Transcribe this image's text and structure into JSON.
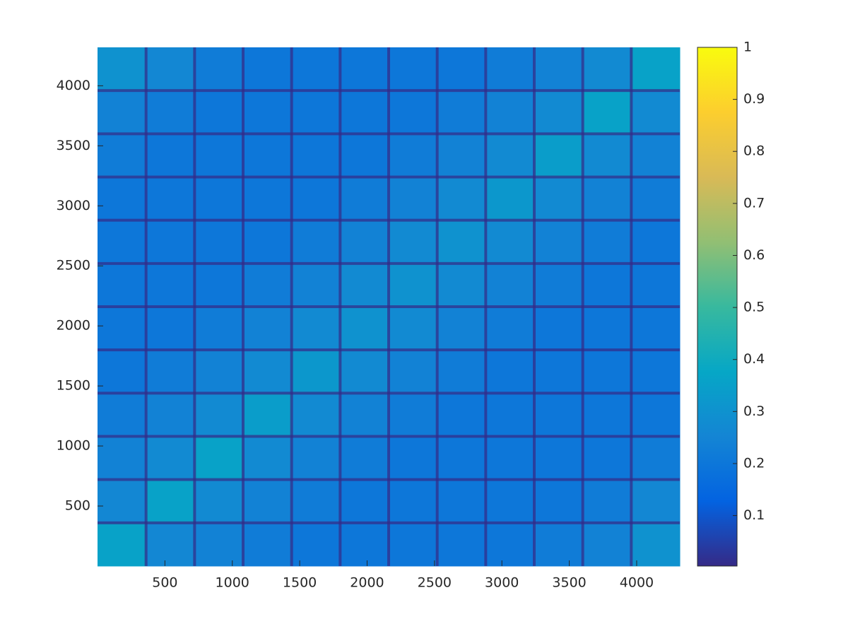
{
  "chart_data": {
    "type": "heatmap",
    "xlim": [
      0,
      4320
    ],
    "ylim": [
      0,
      4320
    ],
    "xticks": [
      500,
      1000,
      1500,
      2000,
      2500,
      3000,
      3500,
      4000
    ],
    "yticks": [
      500,
      1000,
      1500,
      2000,
      2500,
      3000,
      3500,
      4000
    ],
    "clim": [
      0.003,
      1
    ],
    "cticks": [
      0.1,
      0.2,
      0.3,
      0.4,
      0.5,
      0.6,
      0.7,
      0.8,
      0.9,
      1
    ],
    "colormap": [
      "#352a87",
      "#0363e1",
      "#1485d4",
      "#06a7c6",
      "#38b99e",
      "#92bf73",
      "#d9ba56",
      "#fcce2e",
      "#f9fb0e"
    ],
    "z": [
      [
        0.36,
        0.26,
        0.24,
        0.22,
        0.2,
        0.2,
        0.2,
        0.2,
        0.2,
        0.22,
        0.24,
        0.3
      ],
      [
        0.26,
        0.36,
        0.27,
        0.24,
        0.22,
        0.2,
        0.2,
        0.2,
        0.2,
        0.2,
        0.22,
        0.26
      ],
      [
        0.24,
        0.27,
        0.36,
        0.27,
        0.24,
        0.22,
        0.2,
        0.2,
        0.2,
        0.2,
        0.2,
        0.22
      ],
      [
        0.22,
        0.24,
        0.27,
        0.34,
        0.27,
        0.24,
        0.22,
        0.2,
        0.2,
        0.2,
        0.2,
        0.2
      ],
      [
        0.2,
        0.22,
        0.24,
        0.27,
        0.32,
        0.27,
        0.24,
        0.22,
        0.2,
        0.2,
        0.2,
        0.2
      ],
      [
        0.2,
        0.2,
        0.22,
        0.24,
        0.27,
        0.3,
        0.27,
        0.24,
        0.22,
        0.2,
        0.2,
        0.2
      ],
      [
        0.2,
        0.2,
        0.2,
        0.22,
        0.24,
        0.27,
        0.3,
        0.27,
        0.24,
        0.22,
        0.2,
        0.2
      ],
      [
        0.2,
        0.2,
        0.2,
        0.2,
        0.22,
        0.24,
        0.27,
        0.3,
        0.27,
        0.24,
        0.22,
        0.2
      ],
      [
        0.2,
        0.2,
        0.2,
        0.2,
        0.2,
        0.22,
        0.24,
        0.27,
        0.32,
        0.27,
        0.24,
        0.22
      ],
      [
        0.22,
        0.2,
        0.2,
        0.2,
        0.2,
        0.2,
        0.22,
        0.24,
        0.27,
        0.34,
        0.27,
        0.24
      ],
      [
        0.24,
        0.22,
        0.2,
        0.2,
        0.2,
        0.2,
        0.2,
        0.22,
        0.24,
        0.27,
        0.36,
        0.27
      ],
      [
        0.3,
        0.26,
        0.22,
        0.2,
        0.2,
        0.2,
        0.2,
        0.2,
        0.22,
        0.24,
        0.27,
        0.36
      ]
    ]
  }
}
